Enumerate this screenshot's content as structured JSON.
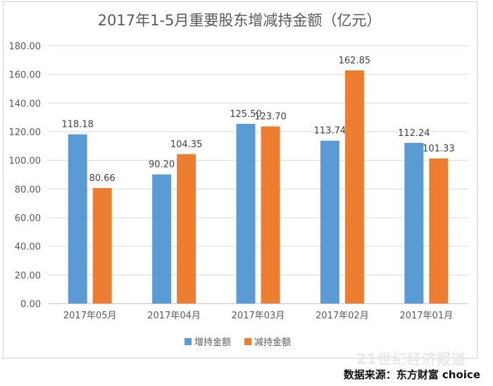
{
  "chart_data": {
    "type": "bar",
    "title": "2017年1-5月重要股东增减持金额（亿元）",
    "categories": [
      "2017年05月",
      "2017年04月",
      "2017年03月",
      "2017年02月",
      "2017年01月"
    ],
    "series": [
      {
        "name": "增持金额",
        "color": "#5b9bd5",
        "values": [
          118.18,
          90.2,
          125.5,
          113.74,
          112.24
        ],
        "labels": [
          "118.18",
          "90.20",
          "125.50",
          "113.74",
          "112.24"
        ]
      },
      {
        "name": "减持金额",
        "color": "#ed7d31",
        "values": [
          80.66,
          104.35,
          123.7,
          162.85,
          101.33
        ],
        "labels": [
          "80.66",
          "104.35",
          "123.70",
          "162.85",
          "101.33"
        ]
      }
    ],
    "ylim": [
      0,
      180
    ],
    "yticks": [
      "0.00",
      "20.00",
      "40.00",
      "60.00",
      "80.00",
      "100.00",
      "120.00",
      "140.00",
      "160.00",
      "180.00"
    ],
    "grid": true,
    "legend": "bottom"
  },
  "watermark": "21世纪经济报道",
  "source": "数据来源：东方财富 choice"
}
